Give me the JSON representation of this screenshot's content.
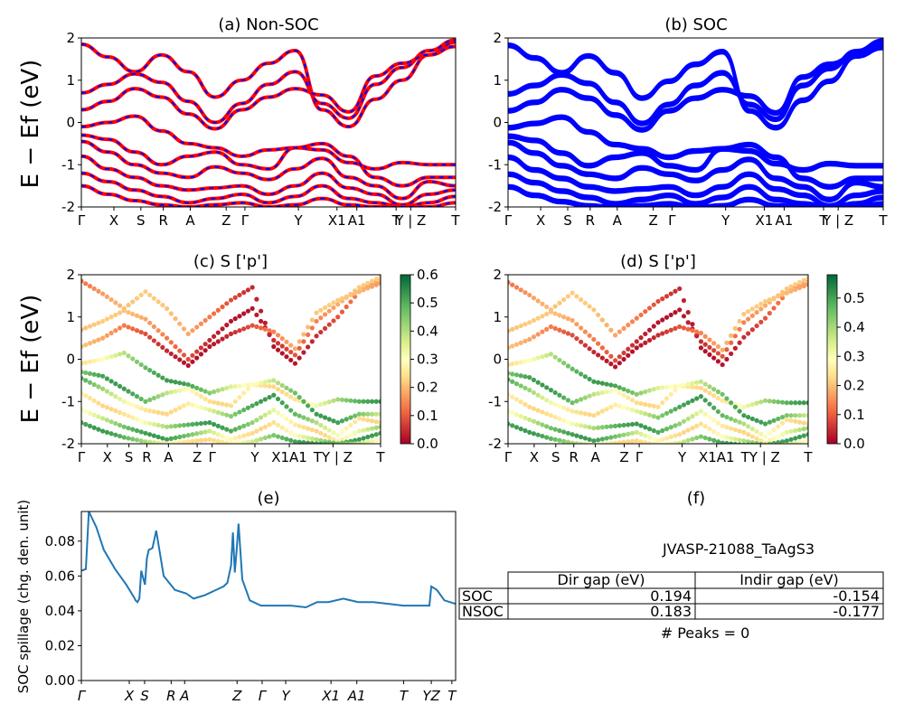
{
  "window": {
    "title": "JVASP-21088_TaAgS3 band structure figure"
  },
  "chart_data": [
    {
      "id": "a",
      "type": "line",
      "title": "(a) Non-SOC",
      "ylabel": "E − Ef (eV)",
      "ylim": [
        -2,
        2
      ],
      "yticks": [
        -2,
        -1,
        0,
        1,
        2
      ],
      "xticks": [
        "Γ",
        "X",
        "S",
        "R",
        "A",
        "Z",
        "Γ",
        "Y",
        "X1",
        "A1",
        "T",
        "Y | Z",
        "T"
      ],
      "colors": {
        "bands": "#ff0000",
        "dash": "#0000ff"
      },
      "series": [
        {
          "values": [
            1.85,
            1.55,
            1.2,
            1.6,
            1.2,
            0.6,
            1.0,
            1.4,
            1.7,
            0.3,
            -0.1,
            0.55,
            1.0,
            1.6,
            1.9
          ]
        },
        {
          "values": [
            0.7,
            0.9,
            1.15,
            0.95,
            0.5,
            0.0,
            0.45,
            0.9,
            1.2,
            0.45,
            0.1,
            0.9,
            1.3,
            1.7,
            1.95
          ]
        },
        {
          "values": [
            0.3,
            0.5,
            0.8,
            0.6,
            0.2,
            -0.15,
            0.3,
            0.6,
            0.8,
            0.65,
            0.25,
            1.1,
            1.4,
            1.6,
            1.8
          ]
        },
        {
          "values": [
            -0.1,
            0.0,
            0.15,
            -0.2,
            -0.5,
            -0.6,
            -0.8,
            -0.65,
            -0.6,
            -0.65,
            -0.95,
            -1.1,
            -0.95,
            -1.0,
            -1.0
          ]
        },
        {
          "values": [
            -0.3,
            -0.4,
            -0.7,
            -1.0,
            -0.8,
            -0.7,
            -1.0,
            -1.1,
            -0.6,
            -0.5,
            -0.8,
            -1.3,
            -1.5,
            -1.3,
            -1.3
          ]
        },
        {
          "values": [
            -0.45,
            -0.7,
            -1.0,
            -1.2,
            -1.3,
            -1.05,
            -1.2,
            -1.35,
            -1.1,
            -0.85,
            -1.3,
            -1.5,
            -1.8,
            -1.4,
            -1.5
          ]
        },
        {
          "values": [
            -0.8,
            -1.1,
            -1.3,
            -1.5,
            -1.6,
            -1.55,
            -1.5,
            -1.7,
            -1.5,
            -1.2,
            -1.55,
            -1.7,
            -1.95,
            -1.7,
            -1.6
          ]
        },
        {
          "values": [
            -1.2,
            -1.4,
            -1.6,
            -1.75,
            -1.9,
            -1.8,
            -1.7,
            -1.9,
            -1.75,
            -1.5,
            -1.8,
            -1.9,
            -2.0,
            -1.9,
            -1.75
          ]
        },
        {
          "values": [
            -1.5,
            -1.7,
            -1.85,
            -1.95,
            -2.0,
            -1.95,
            -1.9,
            -2.0,
            -1.95,
            -1.8,
            -1.95,
            -2.0,
            -2.0,
            -2.0,
            -1.9
          ]
        }
      ]
    },
    {
      "id": "b",
      "type": "line",
      "title": "(b) SOC",
      "ylim": [
        -2,
        2
      ],
      "yticks": [
        -2,
        -1,
        0,
        1,
        2
      ],
      "xticks": [
        "Γ",
        "X",
        "S",
        "R",
        "A",
        "Z",
        "Γ",
        "Y",
        "X1",
        "A1",
        "T",
        "Y | Z",
        "T"
      ],
      "colors": {
        "bands": "#0000ff"
      }
    },
    {
      "id": "c",
      "type": "scatter",
      "title": "(c)  S ['p']",
      "ylabel": "E − Ef (eV)",
      "ylim": [
        -2,
        2
      ],
      "yticks": [
        -2,
        -1,
        0,
        1,
        2
      ],
      "xticks": [
        "Γ",
        "X",
        "S",
        "R",
        "A",
        "Z",
        "Γ",
        "Y",
        "X1A1",
        "TY | Z",
        "T"
      ],
      "colorbar": {
        "min": 0.0,
        "max": 0.6,
        "ticks": [
          "0.0",
          "0.1",
          "0.2",
          "0.3",
          "0.4",
          "0.5",
          "0.6"
        ],
        "colormap": "RdYlGn"
      }
    },
    {
      "id": "d",
      "type": "scatter",
      "title": "(d) S ['p']",
      "ylim": [
        -2,
        2
      ],
      "yticks": [
        -2,
        -1,
        0,
        1,
        2
      ],
      "xticks": [
        "Γ",
        "X",
        "S",
        "R",
        "A",
        "Z",
        "Γ",
        "Y",
        "X1A1",
        "TY | Z",
        "T"
      ],
      "colorbar": {
        "min": 0.0,
        "max": 0.58,
        "ticks": [
          "0.0",
          "0.1",
          "0.2",
          "0.3",
          "0.4",
          "0.5"
        ],
        "colormap": "RdYlGn"
      }
    },
    {
      "id": "e",
      "type": "line",
      "title": "(e)",
      "ylabel": "SOC spillage (chg. den. unit)",
      "ylim": [
        0,
        0.097
      ],
      "yticks": [
        "0.00",
        "0.02",
        "0.04",
        "0.06",
        "0.08"
      ],
      "xticks": [
        "Γ",
        "X",
        "S",
        "R",
        "A",
        "Z",
        "Γ",
        "Y",
        "X1",
        "A1",
        "T",
        "YZ",
        "T"
      ],
      "color": "#1f77b4",
      "x": [
        0,
        0.012,
        0.02,
        0.04,
        0.06,
        0.09,
        0.12,
        0.14,
        0.145,
        0.15,
        0.155,
        0.16,
        0.17,
        0.175,
        0.18,
        0.19,
        0.2,
        0.22,
        0.25,
        0.28,
        0.3,
        0.33,
        0.36,
        0.38,
        0.39,
        0.4,
        0.405,
        0.41,
        0.415,
        0.42,
        0.43,
        0.45,
        0.48,
        0.52,
        0.56,
        0.6,
        0.63,
        0.66,
        0.7,
        0.74,
        0.78,
        0.82,
        0.86,
        0.9,
        0.93,
        0.935,
        0.95,
        0.97,
        1.0
      ],
      "y": [
        0.063,
        0.064,
        0.097,
        0.088,
        0.075,
        0.064,
        0.055,
        0.048,
        0.046,
        0.045,
        0.047,
        0.063,
        0.055,
        0.07,
        0.075,
        0.076,
        0.086,
        0.06,
        0.052,
        0.05,
        0.047,
        0.049,
        0.052,
        0.054,
        0.056,
        0.066,
        0.085,
        0.062,
        0.075,
        0.09,
        0.058,
        0.046,
        0.043,
        0.043,
        0.043,
        0.042,
        0.045,
        0.045,
        0.047,
        0.045,
        0.045,
        0.044,
        0.043,
        0.043,
        0.043,
        0.054,
        0.052,
        0.046,
        0.044
      ]
    }
  ],
  "panel_f": {
    "title": "(f)",
    "material": "JVASP-21088_TaAgS3",
    "table": {
      "headers": [
        "Dir gap (eV)",
        "Indir gap (eV)"
      ],
      "rows": [
        {
          "label": "SOC",
          "dir": "0.194",
          "indir": "-0.154"
        },
        {
          "label": "NSOC",
          "dir": "0.183",
          "indir": "-0.177"
        }
      ]
    },
    "peaks": "# Peaks = 0"
  }
}
